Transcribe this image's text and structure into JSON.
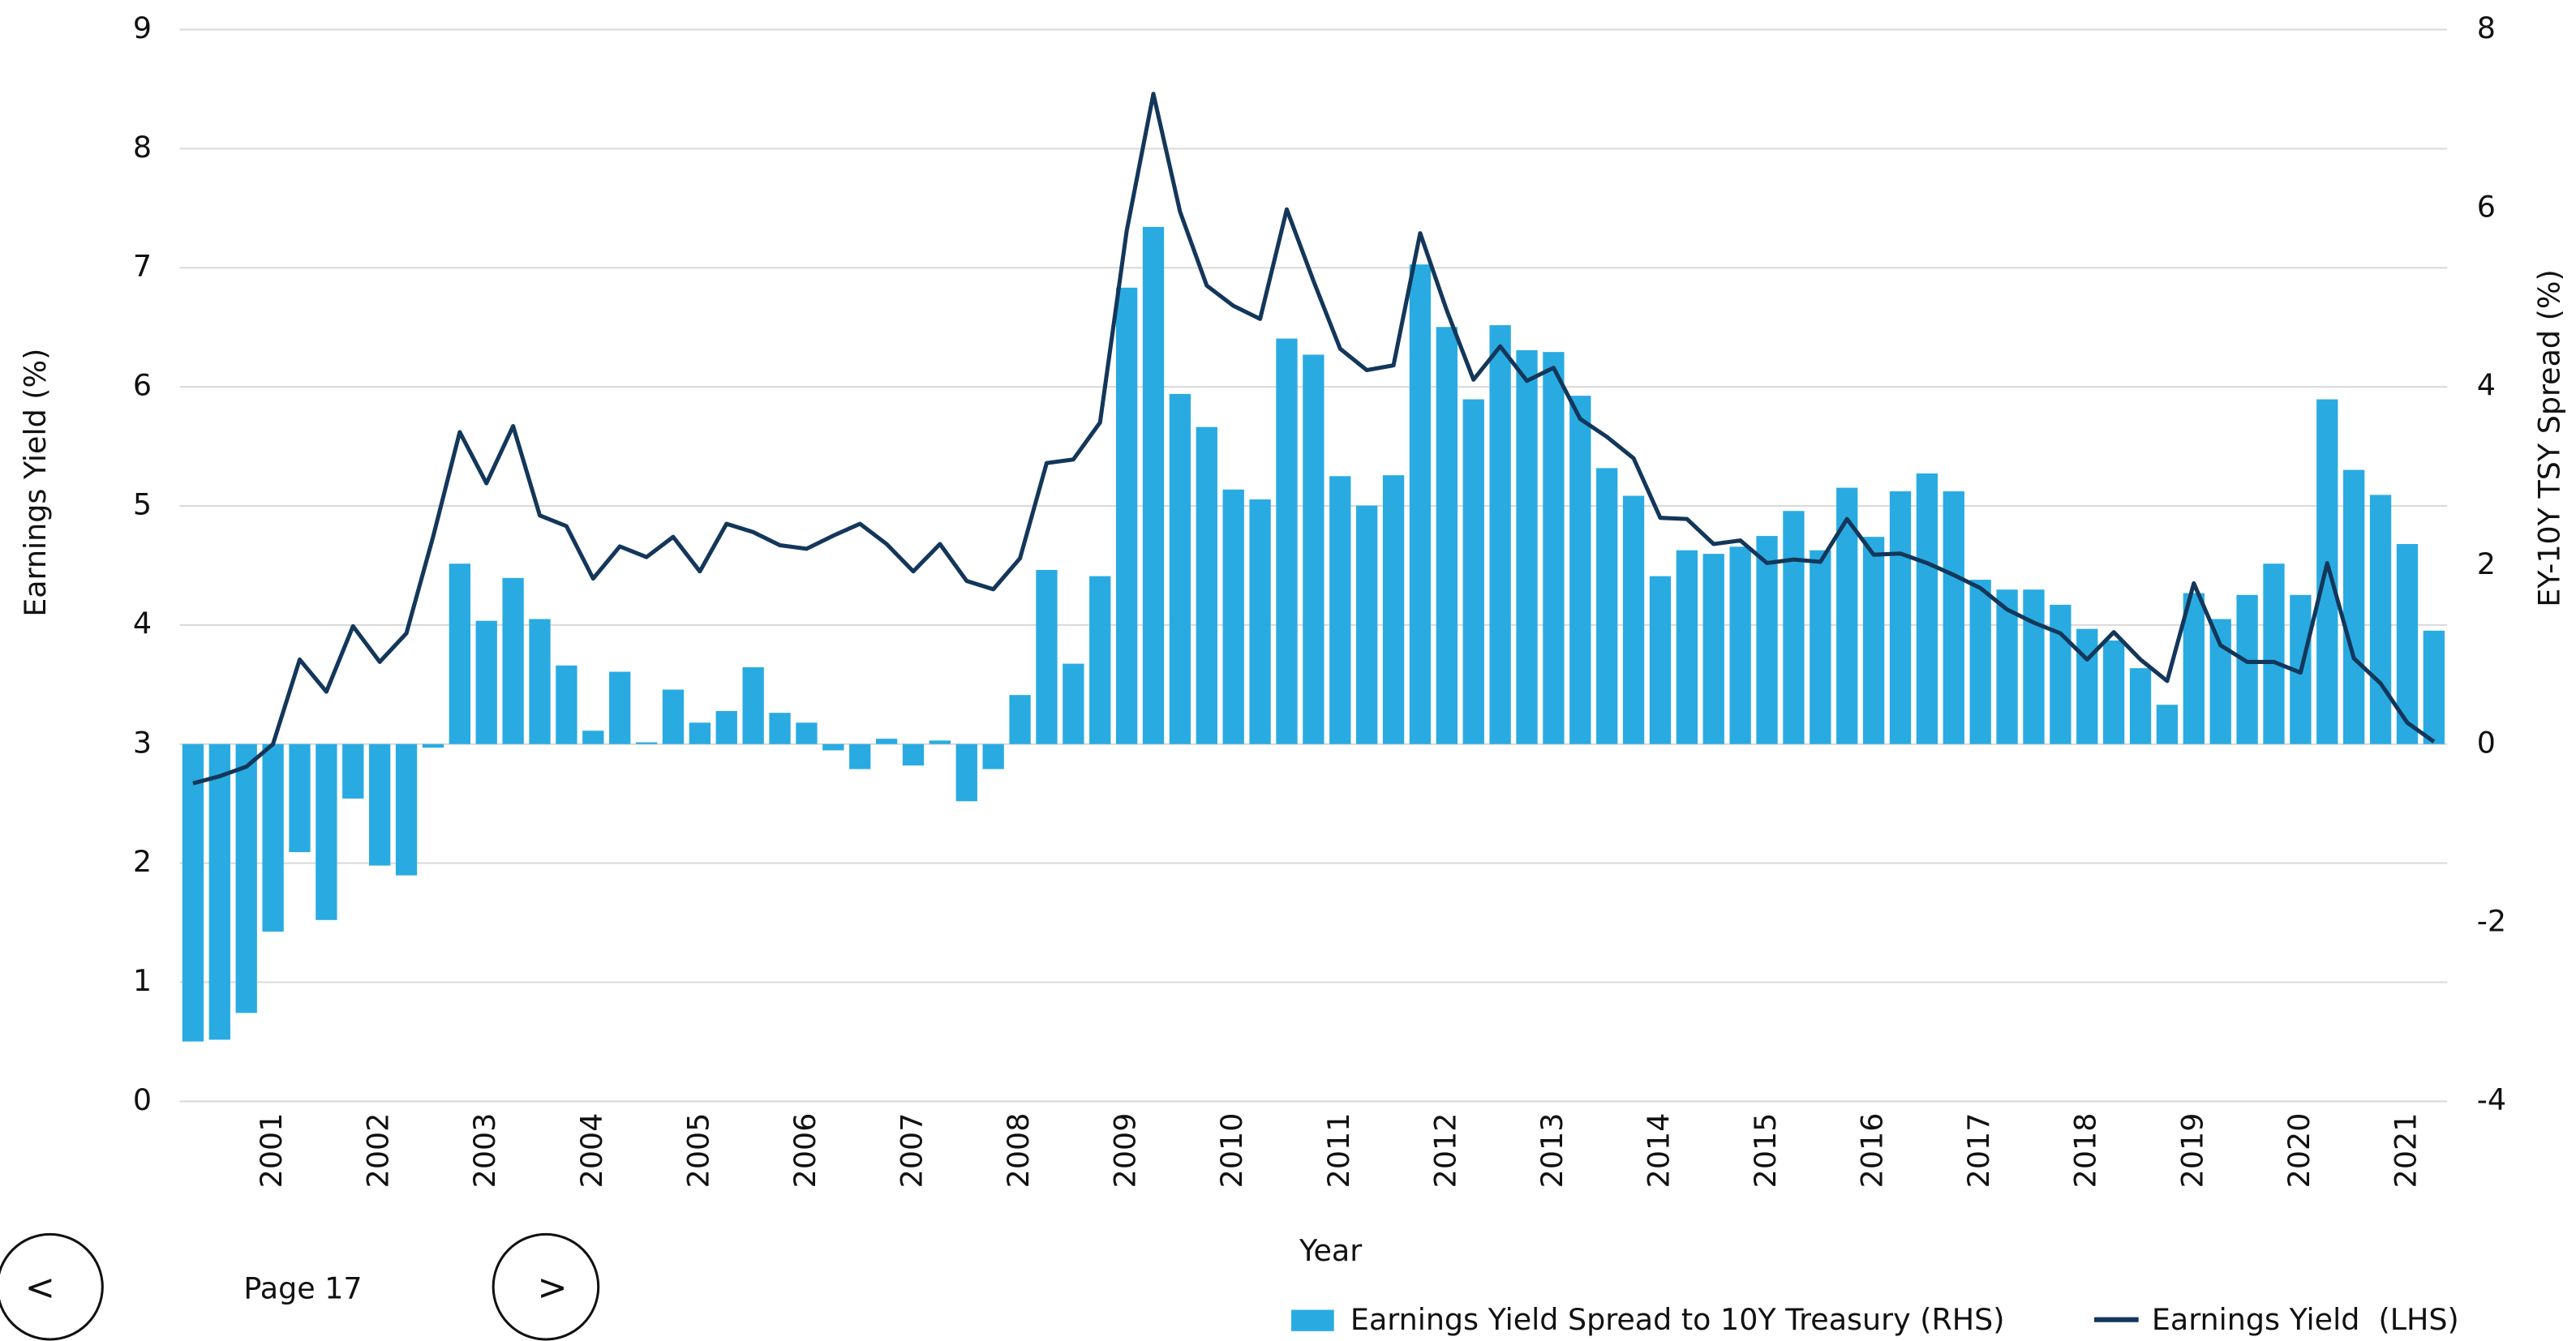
{
  "navigation": {
    "prev": "<",
    "page": "Page 17",
    "next": ">"
  },
  "chart_data": {
    "type": "bar_line",
    "xlabel": "Year",
    "ylabel": "Earnings Yield (%)",
    "y2label": "EY-10Y TSY Spread (%)",
    "categories": [
      null,
      null,
      null,
      "2001",
      null,
      null,
      null,
      "2002",
      null,
      null,
      null,
      "2003",
      null,
      null,
      null,
      "2004",
      null,
      null,
      null,
      "2005",
      null,
      null,
      null,
      "2006",
      null,
      null,
      null,
      "2007",
      null,
      null,
      null,
      "2008",
      null,
      null,
      null,
      "2009",
      null,
      null,
      null,
      "2010",
      null,
      null,
      null,
      "2011",
      null,
      null,
      null,
      "2012",
      null,
      null,
      null,
      "2013",
      null,
      null,
      null,
      "2014",
      null,
      null,
      null,
      "2015",
      null,
      null,
      null,
      "2016",
      null,
      null,
      null,
      "2017",
      null,
      null,
      null,
      "2018",
      null,
      null,
      null,
      "2019",
      null,
      null,
      null,
      "2020",
      null,
      null,
      null,
      "2021",
      null
    ],
    "ylim": [
      0,
      9
    ],
    "yticks": [
      0,
      1,
      2,
      3,
      4,
      5,
      6,
      7,
      8,
      9
    ],
    "y2lim": [
      -4,
      8
    ],
    "y2ticks": [
      -4,
      -2,
      0,
      2,
      4,
      6,
      8
    ],
    "grid": true,
    "series": [
      {
        "name": "Earnings Yield Spread to 10Y Treasury (RHS)",
        "type": "bar",
        "axis": "y2",
        "color": "#29abe2",
        "values": [
          -3.33,
          -3.31,
          -3.01,
          -2.1,
          -1.21,
          -1.97,
          -0.61,
          -1.36,
          -1.47,
          -0.04,
          2.02,
          1.38,
          1.86,
          1.4,
          0.88,
          0.15,
          0.81,
          0.02,
          0.61,
          0.24,
          0.37,
          0.86,
          0.35,
          0.24,
          -0.07,
          -0.28,
          0.06,
          -0.24,
          0.04,
          -0.64,
          -0.28,
          0.55,
          1.95,
          0.9,
          1.88,
          5.11,
          5.79,
          3.92,
          3.55,
          2.85,
          2.74,
          4.54,
          4.36,
          3.0,
          2.67,
          3.01,
          5.37,
          4.67,
          3.86,
          4.69,
          4.41,
          4.39,
          3.9,
          3.09,
          2.78,
          1.88,
          2.17,
          2.13,
          2.21,
          2.33,
          2.61,
          2.17,
          2.87,
          2.32,
          2.83,
          3.03,
          2.83,
          1.84,
          1.73,
          1.73,
          1.56,
          1.29,
          1.16,
          0.85,
          0.44,
          1.69,
          1.4,
          1.67,
          2.02,
          1.67,
          3.86,
          3.07,
          2.79,
          2.24,
          1.27
        ]
      },
      {
        "name": "Earnings Yield  (LHS)",
        "type": "line",
        "axis": "y",
        "color": "#13375a",
        "values": [
          2.67,
          2.73,
          2.81,
          3.0,
          3.71,
          3.44,
          3.99,
          3.69,
          3.93,
          4.74,
          5.62,
          5.19,
          5.67,
          4.92,
          4.83,
          4.39,
          4.66,
          4.57,
          4.74,
          4.45,
          4.85,
          4.78,
          4.67,
          4.64,
          4.75,
          4.85,
          4.68,
          4.45,
          4.68,
          4.37,
          4.3,
          4.56,
          5.36,
          5.39,
          5.7,
          7.31,
          8.46,
          7.47,
          6.85,
          6.68,
          6.57,
          7.49,
          6.89,
          6.32,
          6.14,
          6.18,
          7.29,
          6.64,
          6.06,
          6.34,
          6.05,
          6.16,
          5.73,
          5.58,
          5.4,
          4.9,
          4.89,
          4.68,
          4.71,
          4.52,
          4.55,
          4.53,
          4.89,
          4.59,
          4.6,
          4.52,
          4.42,
          4.31,
          4.13,
          4.02,
          3.93,
          3.71,
          3.94,
          3.71,
          3.53,
          4.35,
          3.83,
          3.69,
          3.69,
          3.6,
          4.52,
          3.72,
          3.51,
          3.18,
          3.02
        ]
      }
    ]
  }
}
